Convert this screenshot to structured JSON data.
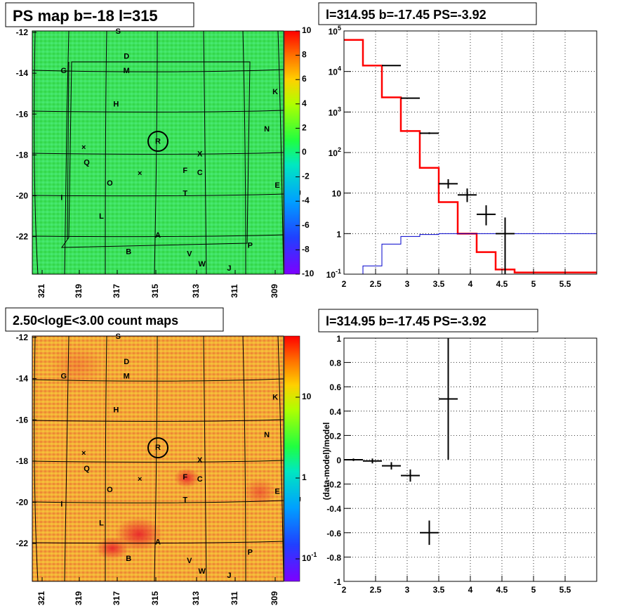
{
  "colors": {
    "model_total": "#ff0000",
    "model_source": "#0000cc",
    "data": "#000000",
    "map_bg_top": "#3ee05a",
    "map_bg_bottom": "#f2a23a"
  },
  "chart_data": [
    {
      "type": "heatmap",
      "title": "PS map b=-18 l=315",
      "xlabel": "",
      "ylabel": "",
      "xticks": [
        "321",
        "319",
        "317",
        "315",
        "313",
        "311",
        "309"
      ],
      "yticks": [
        "-12",
        "-14",
        "-16",
        "-18",
        "-20",
        "-22"
      ],
      "xlim": [
        309.6,
        321.6
      ],
      "ylim": [
        -23.7,
        -12.0
      ],
      "colorbar": {
        "ticks": [
          "10",
          "8",
          "6",
          "4",
          "2",
          "0",
          "-2",
          "-4",
          "-6",
          "-8",
          "-10"
        ],
        "range": [
          -10,
          10
        ],
        "scale": "linear"
      },
      "grid": true,
      "sources": [
        {
          "label": "S",
          "l": 317.5,
          "b": -12.0
        },
        {
          "label": "D",
          "l": 317.1,
          "b": -13.2
        },
        {
          "label": "G",
          "l": 320.1,
          "b": -13.9
        },
        {
          "label": "M",
          "l": 317.1,
          "b": -13.9
        },
        {
          "label": "K",
          "l": 310.0,
          "b": -14.9
        },
        {
          "label": "H",
          "l": 317.6,
          "b": -15.5
        },
        {
          "label": "N",
          "l": 310.4,
          "b": -16.7
        },
        {
          "label": "R",
          "l": 315.6,
          "b": -17.3
        },
        {
          "label": "X",
          "l": 313.6,
          "b": -17.9
        },
        {
          "label": "Q",
          "l": 319.0,
          "b": -18.3
        },
        {
          "label": "F",
          "l": 314.3,
          "b": -18.7
        },
        {
          "label": "C",
          "l": 313.6,
          "b": -18.8
        },
        {
          "label": "O",
          "l": 317.9,
          "b": -19.3
        },
        {
          "label": "E",
          "l": 309.9,
          "b": -19.4
        },
        {
          "label": "T",
          "l": 314.3,
          "b": -19.8
        },
        {
          "label": "U",
          "l": 308.9,
          "b": -19.8
        },
        {
          "label": "I",
          "l": 320.2,
          "b": -20.0
        },
        {
          "label": "L",
          "l": 318.3,
          "b": -20.9
        },
        {
          "label": "A",
          "l": 315.6,
          "b": -21.8
        },
        {
          "label": "P",
          "l": 311.2,
          "b": -22.3
        },
        {
          "label": "B",
          "l": 317.0,
          "b": -22.6
        },
        {
          "label": "V",
          "l": 314.1,
          "b": -22.7
        },
        {
          "label": "W",
          "l": 313.5,
          "b": -23.2
        },
        {
          "label": "J",
          "l": 312.2,
          "b": -23.4
        }
      ]
    },
    {
      "type": "line",
      "title": "l=314.95 b=-17.45 PS=-3.92",
      "xlabel": "",
      "ylabel": "",
      "xlim": [
        2,
        6
      ],
      "ylim": [
        0.1,
        100000
      ],
      "yscale": "log",
      "xticks": [
        "2",
        "2.5",
        "3",
        "3.5",
        "4",
        "4.5",
        "5",
        "5.5"
      ],
      "yticks": [
        "10^5",
        "10^4",
        "10^3",
        "10^2",
        "10",
        "1",
        "10^-1"
      ],
      "grid": true,
      "series": [
        {
          "edges": [
            2.0,
            2.3,
            2.6,
            2.9,
            3.2,
            3.5,
            3.8,
            4.1,
            4.4,
            4.7,
            5.0,
            5.3,
            5.6,
            5.9,
            6.0
          ],
          "values": [
            60000,
            14000,
            2300,
            340,
            42,
            6,
            1,
            0.35,
            0.13,
            0.11,
            0.11,
            0.11,
            0.11,
            0.11
          ]
        },
        {
          "edges": [
            2.0,
            2.3,
            2.6,
            2.9,
            3.2,
            3.5,
            3.8,
            4.1,
            4.4,
            4.7,
            5.0,
            5.3,
            5.6,
            5.9,
            6.0
          ],
          "values": [
            0.05,
            0.16,
            0.55,
            0.85,
            0.95,
            1,
            1,
            1,
            1,
            1,
            1,
            1,
            1,
            1
          ]
        }
      ],
      "points": [
        {
          "x": 2.75,
          "y": 14000,
          "xerr": 0.15,
          "ylo": 13800,
          "yhi": 14200
        },
        {
          "x": 3.05,
          "y": 2200,
          "xerr": 0.15,
          "ylo": 2150,
          "yhi": 2250
        },
        {
          "x": 3.35,
          "y": 300,
          "xerr": 0.15,
          "ylo": 285,
          "yhi": 316
        },
        {
          "x": 3.65,
          "y": 17,
          "xerr": 0.15,
          "ylo": 13,
          "yhi": 22
        },
        {
          "x": 3.95,
          "y": 9,
          "xerr": 0.15,
          "ylo": 6,
          "yhi": 13
        },
        {
          "x": 4.25,
          "y": 3,
          "xerr": 0.15,
          "ylo": 1.6,
          "yhi": 5
        },
        {
          "x": 4.55,
          "y": 1,
          "xerr": 0.15,
          "ylo": 0.1,
          "yhi": 2.5
        }
      ]
    },
    {
      "type": "heatmap",
      "title": "2.50<logE<3.00 count maps",
      "xlabel": "",
      "ylabel": "",
      "xticks": [
        "321",
        "319",
        "317",
        "315",
        "313",
        "311",
        "309"
      ],
      "yticks": [
        "-12",
        "-14",
        "-16",
        "-18",
        "-20",
        "-22"
      ],
      "colorbar": {
        "ticks": [
          "10",
          "1",
          "10^-1"
        ],
        "scale": "log"
      },
      "grid": true
    },
    {
      "type": "scatter",
      "title": "l=314.95 b=-17.45 PS=-3.92",
      "xlabel": "",
      "ylabel": "(data-model)/model",
      "xlim": [
        2,
        6
      ],
      "ylim": [
        -1,
        1
      ],
      "xticks": [
        "2",
        "2.5",
        "3",
        "3.5",
        "4",
        "4.5",
        "5",
        "5.5"
      ],
      "yticks": [
        "1",
        "0.8",
        "0.6",
        "0.4",
        "0.2",
        "0",
        "-0.2",
        "-0.4",
        "-0.6",
        "-0.8",
        "-1"
      ],
      "grid": true,
      "points": [
        {
          "x": 2.15,
          "y": 0.0,
          "xerr": 0.15,
          "yerr": 0.01
        },
        {
          "x": 2.45,
          "y": -0.01,
          "xerr": 0.15,
          "yerr": 0.02
        },
        {
          "x": 2.75,
          "y": -0.05,
          "xerr": 0.15,
          "yerr": 0.03
        },
        {
          "x": 3.05,
          "y": -0.13,
          "xerr": 0.15,
          "yerr": 0.05
        },
        {
          "x": 3.35,
          "y": -0.6,
          "xerr": 0.15,
          "yerr": 0.1
        },
        {
          "x": 3.65,
          "y": 0.5,
          "xerr": 0.15,
          "yerr": 0.5
        }
      ]
    }
  ]
}
